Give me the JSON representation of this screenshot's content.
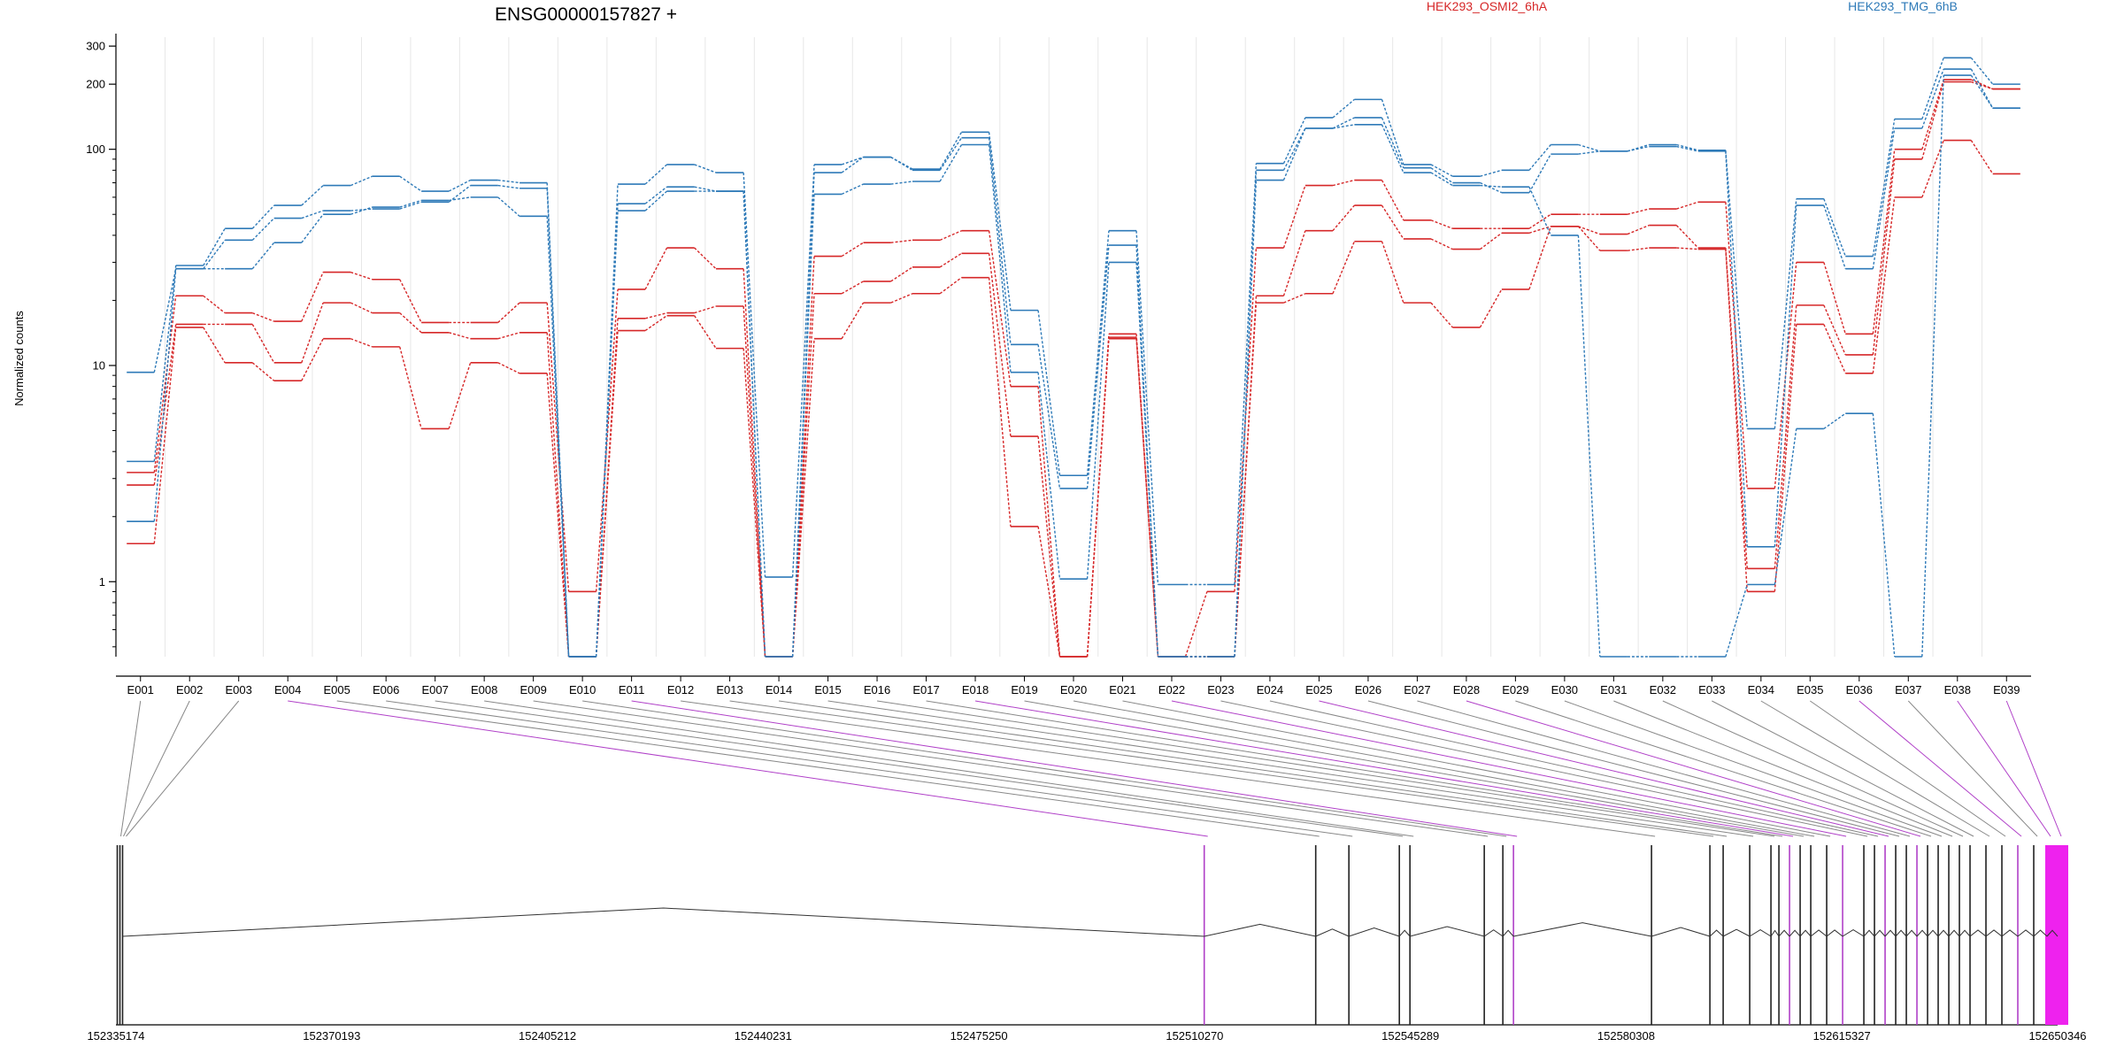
{
  "chart_data": {
    "type": "line",
    "title": "ENSG00000157827 +",
    "ylabel": "Normalized counts",
    "y_scale": "log",
    "ylim": [
      0.45,
      330
    ],
    "y_ticks": [
      {
        "value": 300,
        "label": "300"
      },
      {
        "value": 200,
        "label": "200"
      },
      {
        "value": 100,
        "label": "100"
      },
      {
        "value": 10,
        "label": "10"
      },
      {
        "value": 1,
        "label": "1"
      }
    ],
    "legend_placement": "top",
    "legend": [
      {
        "label": "HEK293_OSMI2_6hA",
        "color": "#d62728"
      },
      {
        "label": "HEK293_TMG_6hB",
        "color": "#2e7ab8"
      }
    ],
    "categories": [
      "E001",
      "E002",
      "E003",
      "E004",
      "E005",
      "E006",
      "E007",
      "E008",
      "E009",
      "E010",
      "E011",
      "E012",
      "E013",
      "E014",
      "E015",
      "E016",
      "E017",
      "E018",
      "E019",
      "E020",
      "E021",
      "E022",
      "E023",
      "E024",
      "E025",
      "E026",
      "E027",
      "E028",
      "E029",
      "E030",
      "E031",
      "E032",
      "E033",
      "E034",
      "E035",
      "E036",
      "E037",
      "E038",
      "E039"
    ],
    "series": [
      {
        "color": "#d62728",
        "values": [
          3.2,
          21,
          17.5,
          16,
          27,
          25,
          15.8,
          15.8,
          19.5,
          0.9,
          22.5,
          35,
          28,
          0.45,
          32,
          37,
          38,
          42,
          8,
          0.45,
          14,
          0.45,
          0.9,
          35,
          68,
          72,
          47,
          43,
          43,
          50,
          50,
          53,
          57,
          2.7,
          30,
          14,
          100,
          210,
          190
        ]
      },
      {
        "color": "#d62728",
        "values": [
          2.8,
          15.5,
          15.5,
          10.3,
          19.5,
          17.5,
          14.2,
          13.3,
          14.2,
          0.45,
          16.5,
          17.5,
          18.8,
          0.45,
          21.5,
          24.5,
          28.5,
          33,
          4.7,
          0.45,
          13.5,
          0.45,
          0.45,
          21,
          42,
          55,
          38.5,
          34.5,
          41,
          44,
          40.5,
          44.5,
          35,
          1.15,
          19,
          11.2,
          90,
          205,
          190
        ]
      },
      {
        "color": "#d62728",
        "values": [
          1.5,
          15,
          10.3,
          8.5,
          13.3,
          12.2,
          5.1,
          10.3,
          9.2,
          0.45,
          14.5,
          17,
          12,
          0.45,
          13.3,
          19.5,
          21.5,
          25.5,
          1.8,
          0.45,
          13.3,
          0.45,
          0.45,
          19.5,
          21.5,
          37.5,
          19.5,
          15,
          22.5,
          44,
          34,
          35,
          34.5,
          0.9,
          15.5,
          9.2,
          60,
          110,
          77
        ]
      },
      {
        "color": "#2e7ab8",
        "values": [
          3.6,
          29,
          43,
          55,
          68,
          75,
          64,
          72,
          70,
          0.45,
          69,
          85,
          78,
          1.05,
          85,
          92,
          81,
          120,
          18,
          3.1,
          42,
          0.97,
          0.97,
          86,
          140,
          170,
          85,
          75,
          80,
          105,
          98,
          105,
          99,
          5.1,
          59,
          32,
          138,
          265,
          200
        ]
      },
      {
        "color": "#2e7ab8",
        "values": [
          9.3,
          28,
          38,
          48,
          52,
          53,
          57,
          68,
          66,
          0.45,
          56,
          67,
          64,
          0.45,
          78,
          92,
          80,
          113,
          12.5,
          2.7,
          36,
          0.45,
          0.45,
          80,
          125,
          140,
          82,
          70,
          63,
          95,
          98,
          103,
          98,
          1.45,
          55,
          28,
          125,
          235,
          155
        ]
      },
      {
        "color": "#2e7ab8",
        "values": [
          1.9,
          28,
          28,
          37,
          50,
          54,
          58,
          60,
          49,
          0.45,
          52,
          64,
          64,
          0.45,
          62,
          69,
          71,
          105,
          9.3,
          1.03,
          30,
          0.45,
          0.45,
          72,
          125,
          130,
          78,
          68,
          67,
          40,
          0.45,
          0.45,
          0.45,
          0.97,
          5.1,
          6,
          0.45,
          220,
          155
        ]
      }
    ]
  },
  "gene_model": {
    "coordinate_labels": [
      "152335174",
      "152370193",
      "152405212",
      "152440231",
      "152475250",
      "152510270",
      "152545289",
      "152580308",
      "152615327",
      "152650346"
    ]
  }
}
